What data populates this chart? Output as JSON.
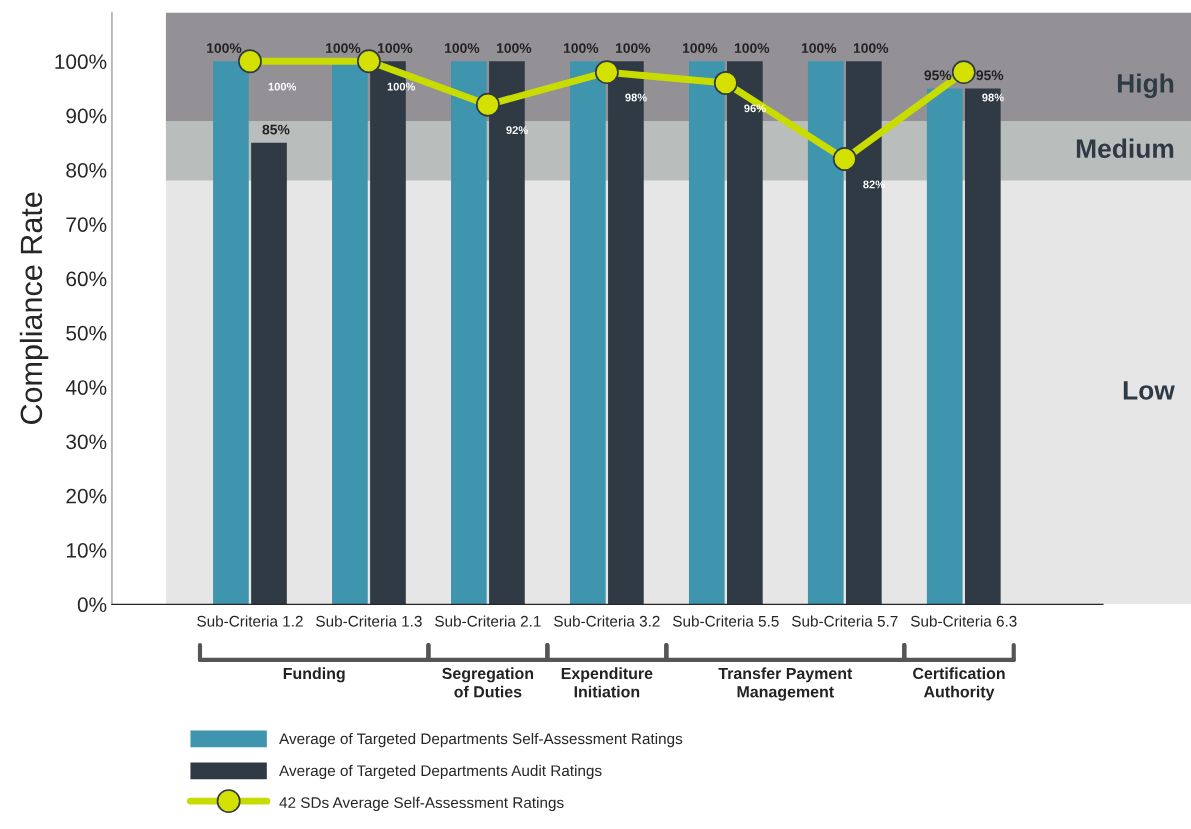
{
  "chart_data": {
    "type": "bar",
    "ylabel": "Compliance Rate",
    "categories": [
      "Sub-Criteria 1.2",
      "Sub-Criteria 1.3",
      "Sub-Criteria 2.1",
      "Sub-Criteria 3.2",
      "Sub-Criteria 5.5",
      "Sub-Criteria 5.7",
      "Sub-Criteria 6.3"
    ],
    "series": [
      {
        "name": "Average of Targeted Departments Self-Assessment Ratings",
        "type": "bar",
        "color": "#3f95ae",
        "values": [
          100,
          100,
          100,
          100,
          100,
          100,
          95
        ],
        "value_labels": [
          "100%",
          "100%",
          "100%",
          "100%",
          "100%",
          "100%",
          "95%"
        ]
      },
      {
        "name": "Average of Targeted Departments Audit Ratings",
        "type": "bar",
        "color": "#2f3a45",
        "values": [
          85,
          100,
          100,
          100,
          100,
          100,
          95
        ],
        "value_labels": [
          "85%",
          "100%",
          "100%",
          "100%",
          "100%",
          "100%",
          "95%"
        ]
      },
      {
        "name": "42 SDs Average Self-Assessment Ratings",
        "type": "line",
        "color": "#c8dc00",
        "marker": "circle",
        "line_style": "solid",
        "values": [
          100,
          100,
          92,
          98,
          96,
          82,
          98
        ],
        "value_labels": [
          "100%",
          "100%",
          "92%",
          "98%",
          "96%",
          "82%",
          "98%"
        ]
      }
    ],
    "ylim": [
      0,
      109
    ],
    "yticks": [
      {
        "value": 0,
        "label": "0%"
      },
      {
        "value": 10,
        "label": "10%"
      },
      {
        "value": 20,
        "label": "20%"
      },
      {
        "value": 30,
        "label": "30%"
      },
      {
        "value": 40,
        "label": "40%"
      },
      {
        "value": 50,
        "label": "50%"
      },
      {
        "value": 60,
        "label": "60%"
      },
      {
        "value": 70,
        "label": "70%"
      },
      {
        "value": 80,
        "label": "80%"
      },
      {
        "value": 90,
        "label": "90%"
      },
      {
        "value": 100,
        "label": "100%"
      }
    ],
    "bands": [
      {
        "axis": "y",
        "from": 89,
        "to": 109,
        "label": "High",
        "color": "#939196"
      },
      {
        "axis": "y",
        "from": 78,
        "to": 89,
        "label": "Medium",
        "color": "#b9bdbc"
      },
      {
        "axis": "y",
        "from": 0,
        "to": 78,
        "label": "Low",
        "color": "#e6e6e6"
      }
    ],
    "annotations": [
      "Funding",
      "Segregation\nof Duties",
      "Expenditure\nInitiation",
      "Transfer Payment\nManagement",
      "Certification\nAuthority"
    ],
    "grid": false,
    "legend": "bottom"
  }
}
